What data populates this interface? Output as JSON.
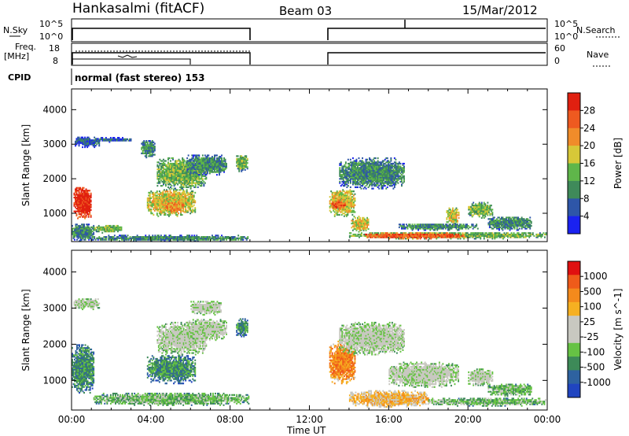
{
  "header": {
    "site": "Hankasalmi (fitACF)",
    "beam": "Beam 03",
    "date": "15/Mar/2012"
  },
  "status_panels": {
    "nsky_label": "N.Sky",
    "nsky_ticks": [
      "10^5",
      "10^0"
    ],
    "nsearch_label": "N.Search",
    "nsearch_ticks": [
      "10^5",
      "10^0"
    ],
    "freq_label_1": "Freq.",
    "freq_label_2": "[MHz]",
    "freq_ticks": [
      "18",
      "8"
    ],
    "nave_label": "Nave",
    "nave_ticks": [
      "60",
      "0"
    ],
    "cpid_label": "CPID",
    "cpid_text": "normal (fast stereo) 153"
  },
  "colors": {
    "power_scale": [
      "#1a22f0",
      "#2e56a8",
      "#3f8a5a",
      "#5fb64a",
      "#d7c838",
      "#f08c2a",
      "#ee5a20",
      "#e02010"
    ],
    "velocity_scale": [
      "#2045c0",
      "#2e62a0",
      "#3d8a58",
      "#66c244",
      "#c8c8c0",
      "#c8c8c0",
      "#f6b021",
      "#f48a1c",
      "#ef5b1a",
      "#e01010"
    ]
  },
  "chart_data": [
    {
      "type": "heatmap",
      "name": "power",
      "ylabel": "Slant Range [km]",
      "xlim": [
        "00:00",
        "24:00"
      ],
      "ylim": [
        180,
        4600
      ],
      "y_ticks": [
        1000,
        2000,
        3000,
        4000
      ],
      "colorbar_label": "Power [dB]",
      "colorbar_ticks": [
        4,
        8,
        12,
        16,
        20,
        24,
        28
      ],
      "data_gaps_UT": [
        [
          "09:00",
          "13:00"
        ]
      ],
      "regions": [
        {
          "t": [
            0.1,
            1.0
          ],
          "r": [
            800,
            1800
          ],
          "level": 7
        },
        {
          "t": [
            0.0,
            1.1
          ],
          "r": [
            180,
            700
          ],
          "level": 2
        },
        {
          "t": [
            1.0,
            8.9
          ],
          "r": [
            180,
            350
          ],
          "level": 2
        },
        {
          "t": [
            0.1,
            1.4
          ],
          "r": [
            2900,
            3200
          ],
          "level": 1
        },
        {
          "t": [
            1.1,
            3.0
          ],
          "r": [
            3050,
            3180
          ],
          "level": 1
        },
        {
          "t": [
            3.8,
            6.2
          ],
          "r": [
            900,
            1700
          ],
          "level": 4
        },
        {
          "t": [
            4.7,
            5.6
          ],
          "r": [
            1000,
            1350
          ],
          "level": 5
        },
        {
          "t": [
            4.3,
            6.8
          ],
          "r": [
            1700,
            2600
          ],
          "level": 3
        },
        {
          "t": [
            5.8,
            7.8
          ],
          "r": [
            2100,
            2700
          ],
          "level": 2
        },
        {
          "t": [
            8.3,
            8.9
          ],
          "r": [
            2200,
            2700
          ],
          "level": 3
        },
        {
          "t": [
            3.5,
            4.2
          ],
          "r": [
            2600,
            3100
          ],
          "level": 2
        },
        {
          "t": [
            1.1,
            2.6
          ],
          "r": [
            420,
            650
          ],
          "level": 3
        },
        {
          "t": [
            13.0,
            14.3
          ],
          "r": [
            900,
            1700
          ],
          "level": 4
        },
        {
          "t": [
            13.1,
            13.8
          ],
          "r": [
            1100,
            1350
          ],
          "level": 6
        },
        {
          "t": [
            13.5,
            16.8
          ],
          "r": [
            1700,
            2600
          ],
          "level": 2
        },
        {
          "t": [
            14.0,
            23.9
          ],
          "r": [
            250,
            450
          ],
          "level": 3
        },
        {
          "t": [
            14.8,
            19.8
          ],
          "r": [
            250,
            420
          ],
          "level": 6
        },
        {
          "t": [
            14.1,
            15.0
          ],
          "r": [
            450,
            900
          ],
          "level": 4
        },
        {
          "t": [
            18.9,
            19.5
          ],
          "r": [
            650,
            1150
          ],
          "level": 4
        },
        {
          "t": [
            20.0,
            21.2
          ],
          "r": [
            850,
            1300
          ],
          "level": 3
        },
        {
          "t": [
            16.5,
            20.5
          ],
          "r": [
            500,
            700
          ],
          "level": 2
        },
        {
          "t": [
            21.0,
            23.2
          ],
          "r": [
            500,
            900
          ],
          "level": 2
        }
      ]
    },
    {
      "type": "heatmap",
      "name": "velocity",
      "ylabel": "Slant Range [km]",
      "xlabel": "Time UT",
      "xlim": [
        "00:00",
        "24:00"
      ],
      "x_ticks": [
        "00:00",
        "04:00",
        "08:00",
        "12:00",
        "16:00",
        "20:00",
        "00:00"
      ],
      "ylim": [
        180,
        4600
      ],
      "y_ticks": [
        1000,
        2000,
        3000,
        4000
      ],
      "colorbar_label": "Velocity [m s^-1]",
      "colorbar_ticks": [
        1000,
        500,
        100,
        25,
        -25,
        -100,
        -500,
        -1000
      ],
      "data_gaps_UT": [
        [
          "09:00",
          "13:00"
        ]
      ],
      "regions": [
        {
          "t": [
            0.0,
            1.1
          ],
          "r": [
            600,
            2000
          ],
          "level": 2
        },
        {
          "t": [
            0.1,
            1.4
          ],
          "r": [
            2950,
            3250
          ],
          "level": 4
        },
        {
          "t": [
            1.1,
            8.9
          ],
          "r": [
            300,
            650
          ],
          "level": 3
        },
        {
          "t": [
            3.8,
            6.2
          ],
          "r": [
            900,
            1700
          ],
          "level": 2
        },
        {
          "t": [
            4.3,
            6.8
          ],
          "r": [
            1700,
            2600
          ],
          "level": 4
        },
        {
          "t": [
            5.8,
            7.8
          ],
          "r": [
            2100,
            2700
          ],
          "level": 4
        },
        {
          "t": [
            8.3,
            8.9
          ],
          "r": [
            2200,
            2700
          ],
          "level": 2
        },
        {
          "t": [
            6.0,
            7.5
          ],
          "r": [
            2800,
            3200
          ],
          "level": 4
        },
        {
          "t": [
            13.0,
            14.3
          ],
          "r": [
            900,
            2100
          ],
          "level": 7
        },
        {
          "t": [
            13.5,
            16.8
          ],
          "r": [
            1700,
            2600
          ],
          "level": 4
        },
        {
          "t": [
            14.0,
            18.0
          ],
          "r": [
            250,
            700
          ],
          "level": 6
        },
        {
          "t": [
            16.0,
            19.5
          ],
          "r": [
            800,
            1500
          ],
          "level": 4
        },
        {
          "t": [
            18.0,
            23.9
          ],
          "r": [
            280,
            500
          ],
          "level": 3
        },
        {
          "t": [
            20.0,
            21.2
          ],
          "r": [
            850,
            1300
          ],
          "level": 4
        },
        {
          "t": [
            21.0,
            23.2
          ],
          "r": [
            550,
            900
          ],
          "level": 3
        }
      ]
    }
  ]
}
